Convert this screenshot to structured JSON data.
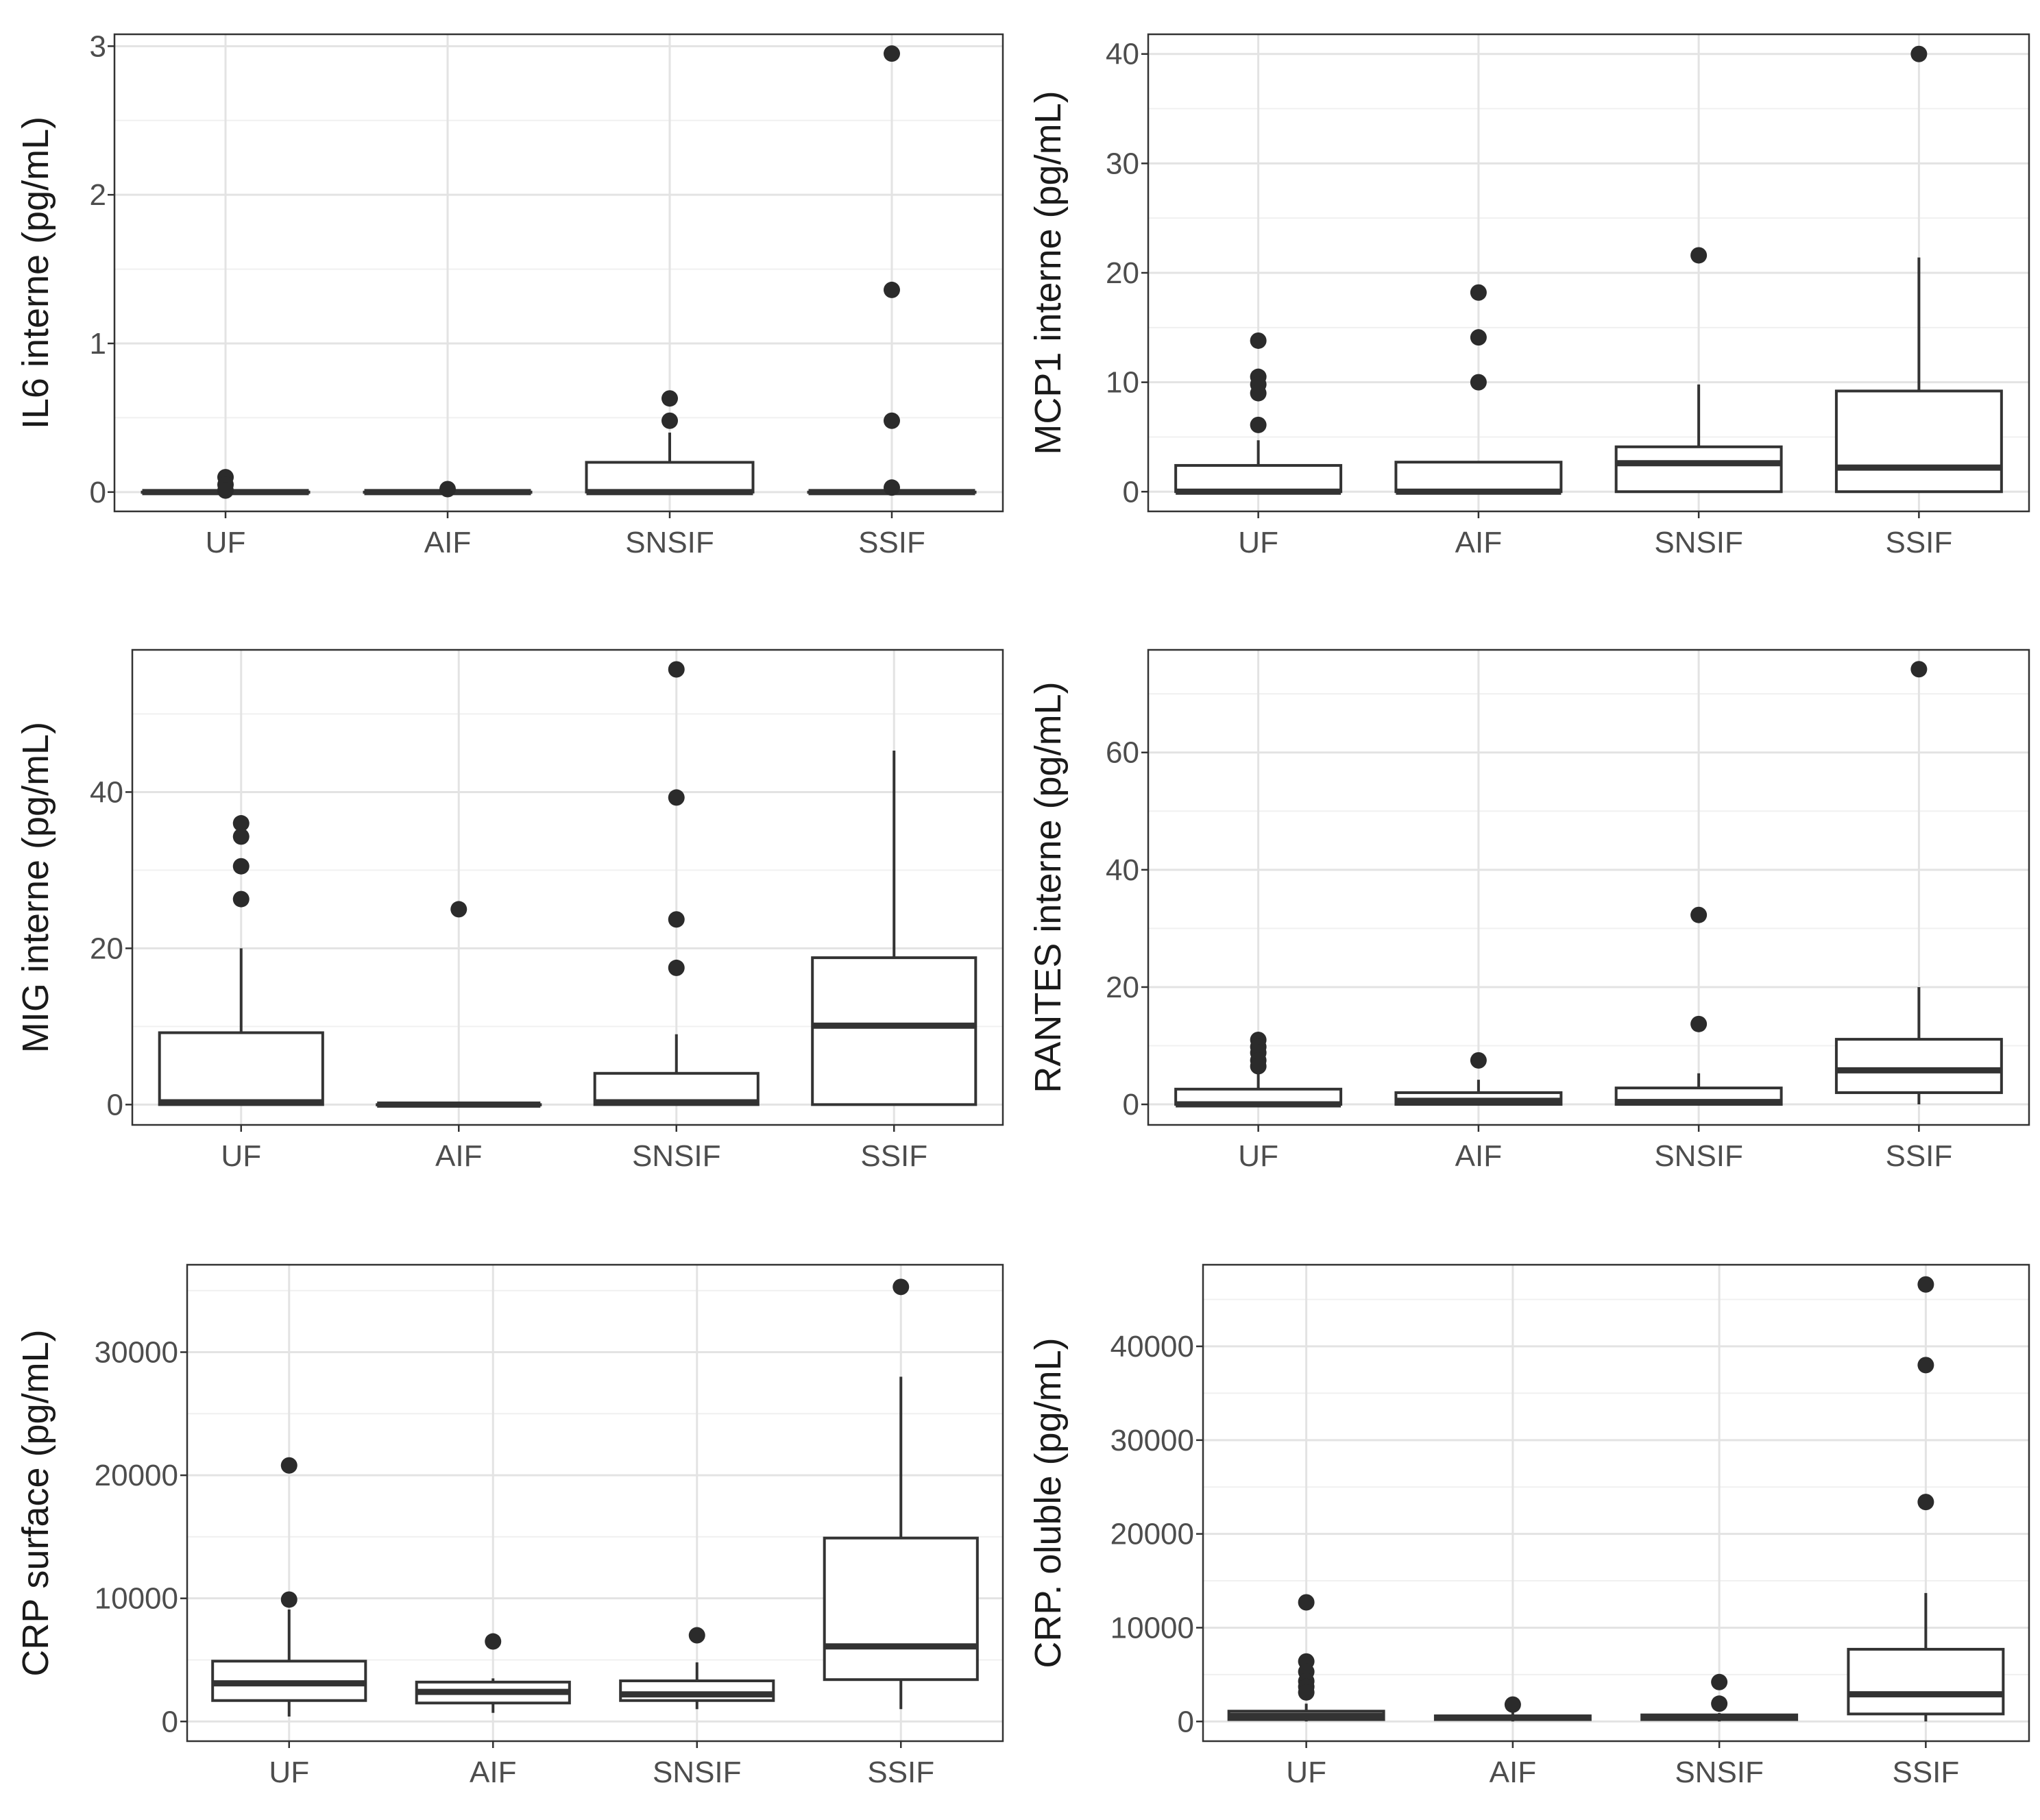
{
  "chart_data": [
    {
      "type": "box",
      "ylabel": "IL6 interne (pg/mL)",
      "categories": [
        "UF",
        "AIF",
        "SNSIF",
        "SSIF"
      ],
      "ylim": [
        -0.13,
        3.08
      ],
      "yticks": [
        0,
        1,
        2,
        3
      ],
      "boxes": [
        {
          "q1": 0,
          "median": 0,
          "q3": 0,
          "whisker_low": 0,
          "whisker_high": 0,
          "outliers": [
            0.1,
            0.05,
            0.01
          ]
        },
        {
          "q1": 0,
          "median": 0,
          "q3": 0,
          "whisker_low": 0,
          "whisker_high": 0,
          "outliers": [
            0.02
          ]
        },
        {
          "q1": 0,
          "median": 0,
          "q3": 0.2,
          "whisker_low": 0,
          "whisker_high": 0.4,
          "outliers": [
            0.63,
            0.48
          ]
        },
        {
          "q1": 0,
          "median": 0,
          "q3": 0,
          "whisker_low": 0,
          "whisker_high": 0,
          "outliers": [
            2.95,
            1.36,
            0.48,
            0.03
          ]
        }
      ]
    },
    {
      "type": "box",
      "ylabel": "MCP1 interne (pg/mL)",
      "categories": [
        "UF",
        "AIF",
        "SNSIF",
        "SSIF"
      ],
      "ylim": [
        -1.8,
        41.8
      ],
      "yticks": [
        0,
        10,
        20,
        30,
        40
      ],
      "boxes": [
        {
          "q1": 0,
          "median": 0,
          "q3": 2.4,
          "whisker_low": 0,
          "whisker_high": 4.7,
          "outliers": [
            13.8,
            10.5,
            9.8,
            9.0,
            6.1
          ]
        },
        {
          "q1": 0,
          "median": 0,
          "q3": 2.7,
          "whisker_low": 0,
          "whisker_high": 2.7,
          "outliers": [
            18.2,
            14.1,
            10.0
          ]
        },
        {
          "q1": 0,
          "median": 2.6,
          "q3": 4.1,
          "whisker_low": 0,
          "whisker_high": 9.8,
          "outliers": [
            21.6
          ]
        },
        {
          "q1": 0,
          "median": 2.2,
          "q3": 9.2,
          "whisker_low": 0,
          "whisker_high": 21.4,
          "outliers": [
            40.0
          ]
        }
      ]
    },
    {
      "type": "box",
      "ylabel": "MIG interne (pg/mL)",
      "categories": [
        "UF",
        "AIF",
        "SNSIF",
        "SSIF"
      ],
      "ylim": [
        -2.6,
        58.2
      ],
      "yticks": [
        0,
        20,
        40
      ],
      "boxes": [
        {
          "q1": 0,
          "median": 0.3,
          "q3": 9.2,
          "whisker_low": 0,
          "whisker_high": 20.0,
          "outliers": [
            36.0,
            34.3,
            30.5,
            26.3
          ]
        },
        {
          "q1": 0,
          "median": 0,
          "q3": 0,
          "whisker_low": 0,
          "whisker_high": 0,
          "outliers": [
            25.0
          ]
        },
        {
          "q1": 0,
          "median": 0.3,
          "q3": 4.0,
          "whisker_low": 0,
          "whisker_high": 9.0,
          "outliers": [
            55.7,
            39.3,
            23.7,
            17.5
          ]
        },
        {
          "q1": 0,
          "median": 10.1,
          "q3": 18.8,
          "whisker_low": 0,
          "whisker_high": 45.3,
          "outliers": []
        }
      ]
    },
    {
      "type": "box",
      "ylabel": "RANTES interne (pg/mL)",
      "categories": [
        "UF",
        "AIF",
        "SNSIF",
        "SSIF"
      ],
      "ylim": [
        -3.5,
        77.5
      ],
      "yticks": [
        0,
        20,
        40,
        60
      ],
      "boxes": [
        {
          "q1": 0,
          "median": 0,
          "q3": 2.6,
          "whisker_low": 0,
          "whisker_high": 5.2,
          "outliers": [
            11.0,
            9.8,
            8.8,
            7.5,
            6.5
          ]
        },
        {
          "q1": 0,
          "median": 0.6,
          "q3": 2.0,
          "whisker_low": 0,
          "whisker_high": 4.2,
          "outliers": [
            7.5
          ]
        },
        {
          "q1": 0,
          "median": 0.4,
          "q3": 2.8,
          "whisker_low": 0,
          "whisker_high": 5.3,
          "outliers": [
            32.3,
            13.7
          ]
        },
        {
          "q1": 2.0,
          "median": 5.8,
          "q3": 11.1,
          "whisker_low": 0,
          "whisker_high": 20.0,
          "outliers": [
            74.2
          ]
        }
      ]
    },
    {
      "type": "box",
      "ylabel": "CRP surface (pg/mL)",
      "categories": [
        "UF",
        "AIF",
        "SNSIF",
        "SSIF"
      ],
      "ylim": [
        -1600,
        37100
      ],
      "yticks": [
        0,
        10000,
        20000,
        30000
      ],
      "boxes": [
        {
          "q1": 1700,
          "median": 3100,
          "q3": 4900,
          "whisker_low": 400,
          "whisker_high": 9100,
          "outliers": [
            20800,
            9900
          ]
        },
        {
          "q1": 1500,
          "median": 2400,
          "q3": 3200,
          "whisker_low": 700,
          "whisker_high": 3500,
          "outliers": [
            6500
          ]
        },
        {
          "q1": 1700,
          "median": 2200,
          "q3": 3300,
          "whisker_low": 1000,
          "whisker_high": 4800,
          "outliers": [
            7000
          ]
        },
        {
          "q1": 3400,
          "median": 6100,
          "q3": 14900,
          "whisker_low": 1000,
          "whisker_high": 28000,
          "outliers": [
            35300
          ]
        }
      ]
    },
    {
      "type": "box",
      "ylabel": "CRP. oluble (pg/mL)",
      "categories": [
        "UF",
        "AIF",
        "SNSIF",
        "SSIF"
      ],
      "ylim": [
        -2100,
        48700
      ],
      "yticks": [
        0,
        10000,
        20000,
        30000,
        40000
      ],
      "boxes": [
        {
          "q1": 200,
          "median": 600,
          "q3": 1100,
          "whisker_low": 0,
          "whisker_high": 1900,
          "outliers": [
            12700,
            6400,
            5300,
            4300,
            3700,
            3100
          ]
        },
        {
          "q1": 200,
          "median": 400,
          "q3": 600,
          "whisker_low": 0,
          "whisker_high": 1000,
          "outliers": [
            1800
          ]
        },
        {
          "q1": 200,
          "median": 400,
          "q3": 700,
          "whisker_low": 0,
          "whisker_high": 900,
          "outliers": [
            4200,
            1900
          ]
        },
        {
          "q1": 800,
          "median": 2900,
          "q3": 7700,
          "whisker_low": 0,
          "whisker_high": 13700,
          "outliers": [
            46600,
            38000,
            23400
          ]
        }
      ]
    }
  ]
}
